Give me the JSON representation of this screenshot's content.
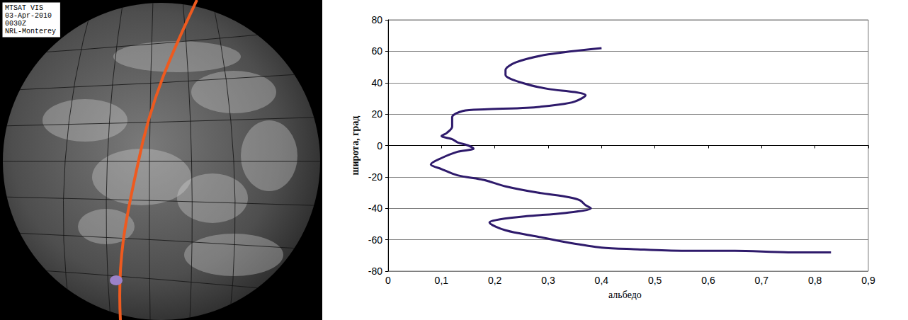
{
  "chart_data": {
    "type": "line",
    "xlabel": "альбедо",
    "ylabel": "широта, град",
    "x": [
      0.4,
      0.3,
      0.24,
      0.22,
      0.22,
      0.25,
      0.3,
      0.35,
      0.37,
      0.35,
      0.32,
      0.26,
      0.18,
      0.14,
      0.12,
      0.12,
      0.11,
      0.1,
      0.12,
      0.13,
      0.15,
      0.16,
      0.13,
      0.1,
      0.08,
      0.1,
      0.13,
      0.18,
      0.22,
      0.28,
      0.34,
      0.36,
      0.37,
      0.38,
      0.33,
      0.26,
      0.21,
      0.19,
      0.22,
      0.28,
      0.34,
      0.4,
      0.46,
      0.55,
      0.65,
      0.75,
      0.83
    ],
    "values": [
      62,
      58,
      53,
      48,
      45,
      40,
      36,
      34,
      32,
      28,
      26,
      24,
      23,
      22,
      18,
      12,
      8,
      6,
      4,
      2,
      0,
      -2,
      -4,
      -8,
      -12,
      -15,
      -19,
      -22,
      -26,
      -30,
      -33,
      -35,
      -38,
      -40,
      -43,
      -45,
      -47,
      -49,
      -54,
      -58,
      -62,
      -65,
      -66,
      -67,
      -67,
      -68,
      -68
    ],
    "color": "#2e1a6b",
    "xlim": [
      0,
      0.9
    ],
    "xticks": [
      0,
      {
        "value": 0.1,
        "label": "0,1"
      },
      {
        "value": 0.2,
        "label": "0,2"
      },
      {
        "value": 0.3,
        "label": "0,3"
      },
      {
        "value": 0.4,
        "label": "0,4"
      },
      {
        "value": 0.5,
        "label": "0,5"
      },
      {
        "value": 0.6,
        "label": "0,6"
      },
      {
        "value": 0.7,
        "label": "0,7"
      },
      {
        "value": 0.8,
        "label": "0,8"
      },
      {
        "value": 0.9,
        "label": "0,9"
      }
    ],
    "ylim": [
      -80,
      80
    ],
    "yticks": [
      -80,
      -60,
      -40,
      -20,
      0,
      20,
      40,
      60,
      80
    ],
    "grid": "y"
  },
  "image": {
    "label_lines": [
      "MTSAT VIS",
      "03-Apr-2010",
      "0030Z",
      "NRL-Monterey"
    ],
    "track_color": "#ee5a1f",
    "point_color": "#9b82c9"
  }
}
